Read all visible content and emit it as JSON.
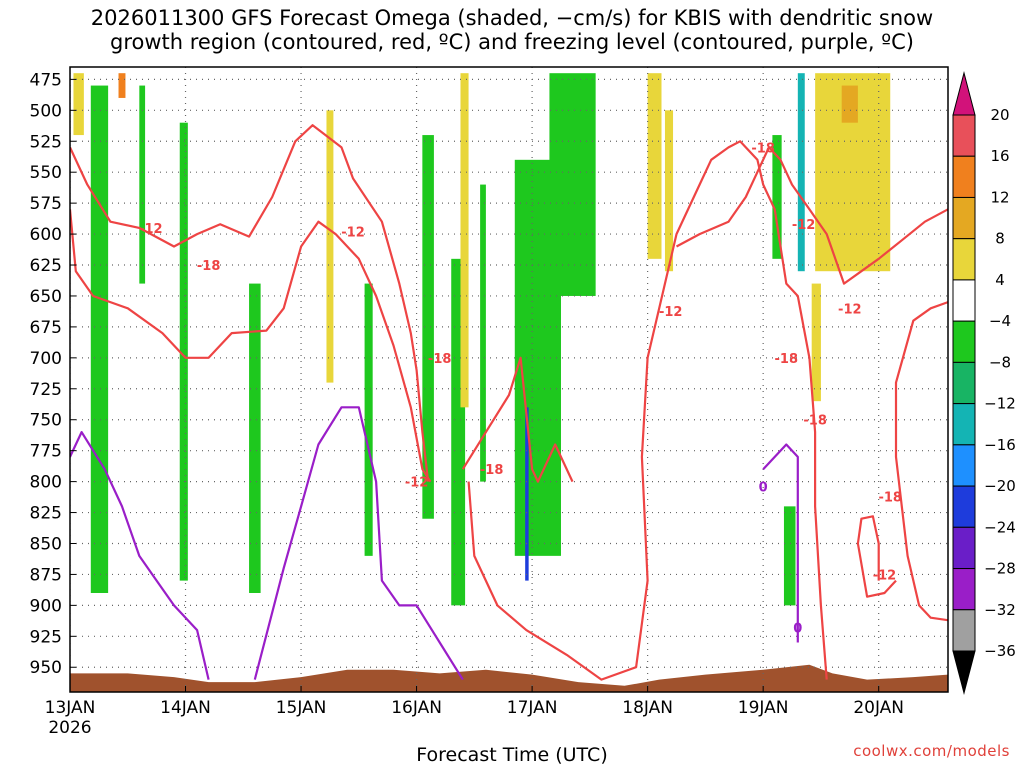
{
  "title_line1": "2026011300 GFS Forecast Omega (shaded, −cm/s) for KBIS with dendritic snow",
  "title_line2": "growth region (contoured, red, ºC) and freezing level (contoured, purple, ºC)",
  "xlabel": "Forecast Time (UTC)",
  "credit": "coolwx.com/models",
  "chart_data": {
    "type": "heatmap",
    "title": "2026011300 GFS Forecast Omega (shaded, −cm/s) for KBIS with dendritic snow growth region (contoured, red, ºC) and freezing level (contoured, purple, ºC)",
    "xlabel": "Forecast Time (UTC)",
    "ylabel": "",
    "x_ticks": [
      "13JAN",
      "14JAN",
      "15JAN",
      "16JAN",
      "17JAN",
      "18JAN",
      "19JAN",
      "20JAN"
    ],
    "x_year": "2026",
    "xlim_days": [
      0,
      7.6
    ],
    "y_ticks": [
      475,
      500,
      525,
      550,
      575,
      600,
      625,
      650,
      675,
      700,
      725,
      750,
      775,
      800,
      825,
      850,
      875,
      900,
      925,
      950
    ],
    "ylim": [
      465,
      970
    ],
    "grid": true,
    "colorbar": {
      "labels": [
        "20",
        "16",
        "12",
        "8",
        "4",
        "−4",
        "−8",
        "−12",
        "−16",
        "−20",
        "−24",
        "−28",
        "−32",
        "−36"
      ],
      "colors": [
        "#e8505a",
        "#f0801e",
        "#e4a822",
        "#e8d63a",
        "#ffffff",
        "#1ec81e",
        "#18b464",
        "#14b4b4",
        "#1e90ff",
        "#1e3cdc",
        "#6a1ec8",
        "#9a1ec8",
        "#a0a0a0",
        "#000000"
      ],
      "top_triangle_color": "#d2127a",
      "bottom_triangle_color": "#000000"
    },
    "omega_regions": [
      {
        "level": "-8",
        "color": "#1ec81e",
        "x0": 0.18,
        "x1": 0.33,
        "p0": 480,
        "p1": 890
      },
      {
        "level": "-8",
        "color": "#1ec81e",
        "x0": 0.6,
        "x1": 0.65,
        "p0": 480,
        "p1": 640
      },
      {
        "level": "-8",
        "color": "#1ec81e",
        "x0": 0.95,
        "x1": 1.02,
        "p0": 510,
        "p1": 880
      },
      {
        "level": "-8",
        "color": "#1ec81e",
        "x0": 1.55,
        "x1": 1.65,
        "p0": 640,
        "p1": 890
      },
      {
        "level": "-8",
        "color": "#1ec81e",
        "x0": 2.55,
        "x1": 2.62,
        "p0": 640,
        "p1": 860
      },
      {
        "level": "-8",
        "color": "#1ec81e",
        "x0": 3.05,
        "x1": 3.15,
        "p0": 520,
        "p1": 830
      },
      {
        "level": "-8",
        "color": "#1ec81e",
        "x0": 3.3,
        "x1": 3.42,
        "p0": 620,
        "p1": 900
      },
      {
        "level": "-8",
        "color": "#1ec81e",
        "x0": 3.55,
        "x1": 3.6,
        "p0": 560,
        "p1": 800
      },
      {
        "level": "-8",
        "color": "#1ec81e",
        "x0": 3.85,
        "x1": 4.25,
        "p0": 540,
        "p1": 860
      },
      {
        "level": "-8",
        "color": "#1ec81e",
        "x0": 4.15,
        "x1": 4.55,
        "p0": 470,
        "p1": 650
      },
      {
        "level": "-8",
        "color": "#1ec81e",
        "x0": 6.08,
        "x1": 6.16,
        "p0": 520,
        "p1": 620
      },
      {
        "level": "-8",
        "color": "#1ec81e",
        "x0": 6.18,
        "x1": 6.28,
        "p0": 820,
        "p1": 900
      },
      {
        "level": "-12",
        "color": "#14b4b4",
        "x0": 6.3,
        "x1": 6.36,
        "p0": 470,
        "p1": 630
      },
      {
        "level": "-20",
        "color": "#1e3cdc",
        "x0": 3.94,
        "x1": 3.97,
        "p0": 740,
        "p1": 880
      },
      {
        "level": "4",
        "color": "#e8d63a",
        "x0": 0.03,
        "x1": 0.12,
        "p0": 470,
        "p1": 520
      },
      {
        "level": "4",
        "color": "#e8d63a",
        "x0": 2.22,
        "x1": 2.28,
        "p0": 500,
        "p1": 720
      },
      {
        "level": "4",
        "color": "#e8d63a",
        "x0": 3.38,
        "x1": 3.45,
        "p0": 470,
        "p1": 740
      },
      {
        "level": "4",
        "color": "#e8d63a",
        "x0": 5.0,
        "x1": 5.12,
        "p0": 470,
        "p1": 620
      },
      {
        "level": "4",
        "color": "#e8d63a",
        "x0": 5.15,
        "x1": 5.22,
        "p0": 500,
        "p1": 630
      },
      {
        "level": "4",
        "color": "#e8d63a",
        "x0": 6.45,
        "x1": 7.1,
        "p0": 470,
        "p1": 630
      },
      {
        "level": "4",
        "color": "#e8d63a",
        "x0": 6.42,
        "x1": 6.5,
        "p0": 640,
        "p1": 735
      },
      {
        "level": "8",
        "color": "#e4a822",
        "x0": 6.68,
        "x1": 6.82,
        "p0": 480,
        "p1": 510
      },
      {
        "level": "12",
        "color": "#f0801e",
        "x0": 0.42,
        "x1": 0.48,
        "p0": 470,
        "p1": 490
      }
    ],
    "dendritic_contour_labels": [
      "-12",
      "-18",
      "-12",
      "-18",
      "-12",
      "-18",
      "-12",
      "-18",
      "-12",
      "-18",
      "-12",
      "-18",
      "-12",
      "-18"
    ],
    "freezing_contour_labels": [
      "0",
      "0"
    ],
    "series": [
      {
        "name": "-12",
        "color": "#ee4444",
        "points": [
          [
            0.0,
            530
          ],
          [
            0.15,
            560
          ],
          [
            0.35,
            590
          ],
          [
            0.6,
            595
          ],
          [
            0.9,
            610
          ],
          [
            1.1,
            600
          ],
          [
            1.3,
            592
          ],
          [
            1.55,
            602
          ],
          [
            1.75,
            570
          ],
          [
            1.95,
            525
          ],
          [
            2.1,
            512
          ],
          [
            2.35,
            530
          ],
          [
            2.45,
            555
          ],
          [
            2.7,
            590
          ],
          [
            2.85,
            640
          ],
          [
            2.95,
            680
          ],
          [
            3.0,
            710
          ],
          [
            3.05,
            760
          ],
          [
            3.1,
            800
          ]
        ]
      },
      {
        "name": "-12",
        "color": "#ee4444",
        "points": [
          [
            0.0,
            580
          ],
          [
            0.05,
            630
          ],
          [
            0.2,
            650
          ],
          [
            0.5,
            660
          ],
          [
            0.8,
            680
          ],
          [
            1.0,
            700
          ],
          [
            1.2,
            700
          ],
          [
            1.4,
            680
          ],
          [
            1.7,
            678
          ],
          [
            1.85,
            660
          ],
          [
            2.0,
            610
          ],
          [
            2.15,
            590
          ],
          [
            2.3,
            600
          ],
          [
            2.5,
            620
          ],
          [
            2.65,
            650
          ],
          [
            2.8,
            690
          ],
          [
            2.95,
            740
          ],
          [
            3.05,
            790
          ],
          [
            3.12,
            800
          ]
        ]
      },
      {
        "name": "-18",
        "color": "#ee4444",
        "points": [
          [
            3.4,
            790
          ],
          [
            3.6,
            760
          ],
          [
            3.8,
            730
          ],
          [
            3.9,
            700
          ],
          [
            4.0,
            790
          ],
          [
            4.05,
            800
          ],
          [
            4.1,
            790
          ],
          [
            4.2,
            770
          ],
          [
            4.35,
            800
          ]
        ]
      },
      {
        "name": "-12",
        "color": "#ee4444",
        "points": [
          [
            3.45,
            800
          ],
          [
            3.5,
            860
          ],
          [
            3.7,
            900
          ],
          [
            3.95,
            920
          ],
          [
            4.3,
            940
          ],
          [
            4.6,
            960
          ],
          [
            4.9,
            950
          ],
          [
            5.0,
            880
          ],
          [
            4.95,
            780
          ],
          [
            5.0,
            700
          ],
          [
            5.1,
            660
          ],
          [
            5.25,
            600
          ],
          [
            5.45,
            560
          ],
          [
            5.55,
            540
          ],
          [
            5.7,
            530
          ],
          [
            5.8,
            525
          ],
          [
            5.95,
            540
          ],
          [
            6.0,
            560
          ],
          [
            6.1,
            580
          ],
          [
            6.2,
            640
          ],
          [
            6.3,
            650
          ],
          [
            6.4,
            700
          ],
          [
            6.45,
            760
          ],
          [
            6.45,
            820
          ],
          [
            6.5,
            900
          ],
          [
            6.55,
            960
          ]
        ]
      },
      {
        "name": "-18",
        "color": "#ee4444",
        "points": [
          [
            5.25,
            610
          ],
          [
            5.45,
            600
          ],
          [
            5.7,
            590
          ],
          [
            5.85,
            570
          ],
          [
            6.05,
            530
          ],
          [
            6.15,
            540
          ],
          [
            6.25,
            560
          ],
          [
            6.4,
            580
          ],
          [
            6.55,
            600
          ],
          [
            6.7,
            640
          ],
          [
            6.85,
            630
          ],
          [
            7.0,
            620
          ],
          [
            7.2,
            605
          ],
          [
            7.4,
            590
          ],
          [
            7.6,
            580
          ]
        ]
      },
      {
        "name": "-12",
        "color": "#ee4444",
        "points": [
          [
            7.6,
            655
          ],
          [
            7.45,
            660
          ],
          [
            7.3,
            670
          ],
          [
            7.15,
            720
          ],
          [
            7.15,
            780
          ],
          [
            7.25,
            860
          ],
          [
            7.35,
            900
          ],
          [
            7.45,
            910
          ],
          [
            7.6,
            912
          ]
        ]
      },
      {
        "name": "-18",
        "color": "#ee4444",
        "points": [
          [
            7.15,
            880
          ],
          [
            7.05,
            890
          ],
          [
            6.9,
            893
          ],
          [
            6.82,
            850
          ],
          [
            6.85,
            830
          ],
          [
            6.95,
            828
          ],
          [
            7.0,
            850
          ],
          [
            7.0,
            880
          ]
        ]
      },
      {
        "name": "0",
        "color": "#9a1ec8",
        "points": [
          [
            0.0,
            780
          ],
          [
            0.1,
            760
          ],
          [
            0.3,
            790
          ],
          [
            0.45,
            820
          ],
          [
            0.6,
            860
          ],
          [
            0.75,
            880
          ],
          [
            0.9,
            900
          ],
          [
            1.1,
            920
          ],
          [
            1.2,
            960
          ]
        ]
      },
      {
        "name": "0",
        "color": "#9a1ec8",
        "points": [
          [
            1.6,
            960
          ],
          [
            1.85,
            870
          ],
          [
            2.0,
            820
          ],
          [
            2.15,
            770
          ],
          [
            2.35,
            740
          ],
          [
            2.5,
            740
          ],
          [
            2.65,
            800
          ],
          [
            2.7,
            880
          ],
          [
            2.85,
            900
          ],
          [
            3.0,
            900
          ],
          [
            3.2,
            930
          ],
          [
            3.4,
            960
          ]
        ]
      },
      {
        "name": "0",
        "color": "#9a1ec8",
        "points": [
          [
            6.0,
            790
          ],
          [
            6.2,
            770
          ],
          [
            6.3,
            780
          ],
          [
            6.3,
            860
          ],
          [
            6.3,
            930
          ]
        ]
      }
    ]
  }
}
